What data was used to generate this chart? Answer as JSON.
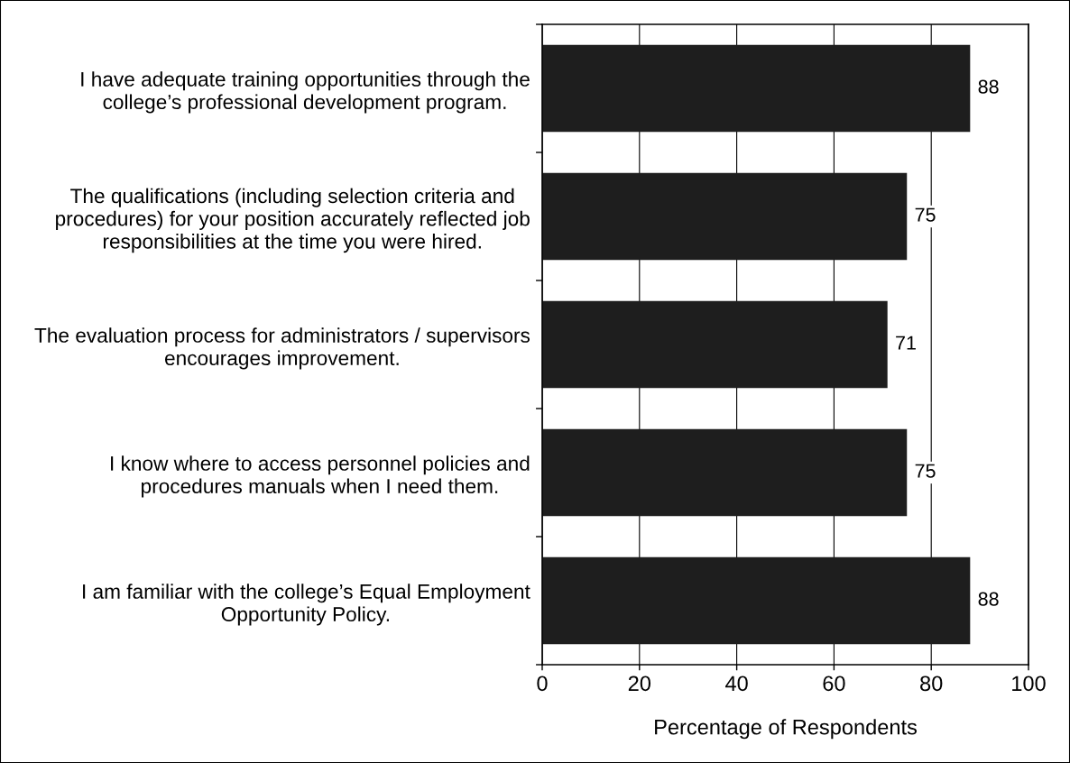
{
  "chart_data": {
    "type": "bar",
    "orientation": "horizontal",
    "categories": [
      "I have adequate training opportunities through the college’s professional development program.",
      "The qualifications (including selection criteria and procedures) for your position accurately reflected job responsibilities at the time you were hired.",
      "The evaluation process for administrators / supervisors encourages improvement.",
      "I know where to access personnel policies and procedures manuals when I need them.",
      "I am familiar with the college’s Equal Employment Opportunity Policy."
    ],
    "values": [
      88,
      75,
      71,
      75,
      88
    ],
    "color": "#1e1e1e",
    "xlabel": "Percentage of Respondents",
    "xlim": [
      0,
      100
    ],
    "xticks": [
      0,
      20,
      40,
      60,
      80,
      100
    ],
    "grid": "x",
    "data_labels": true
  }
}
